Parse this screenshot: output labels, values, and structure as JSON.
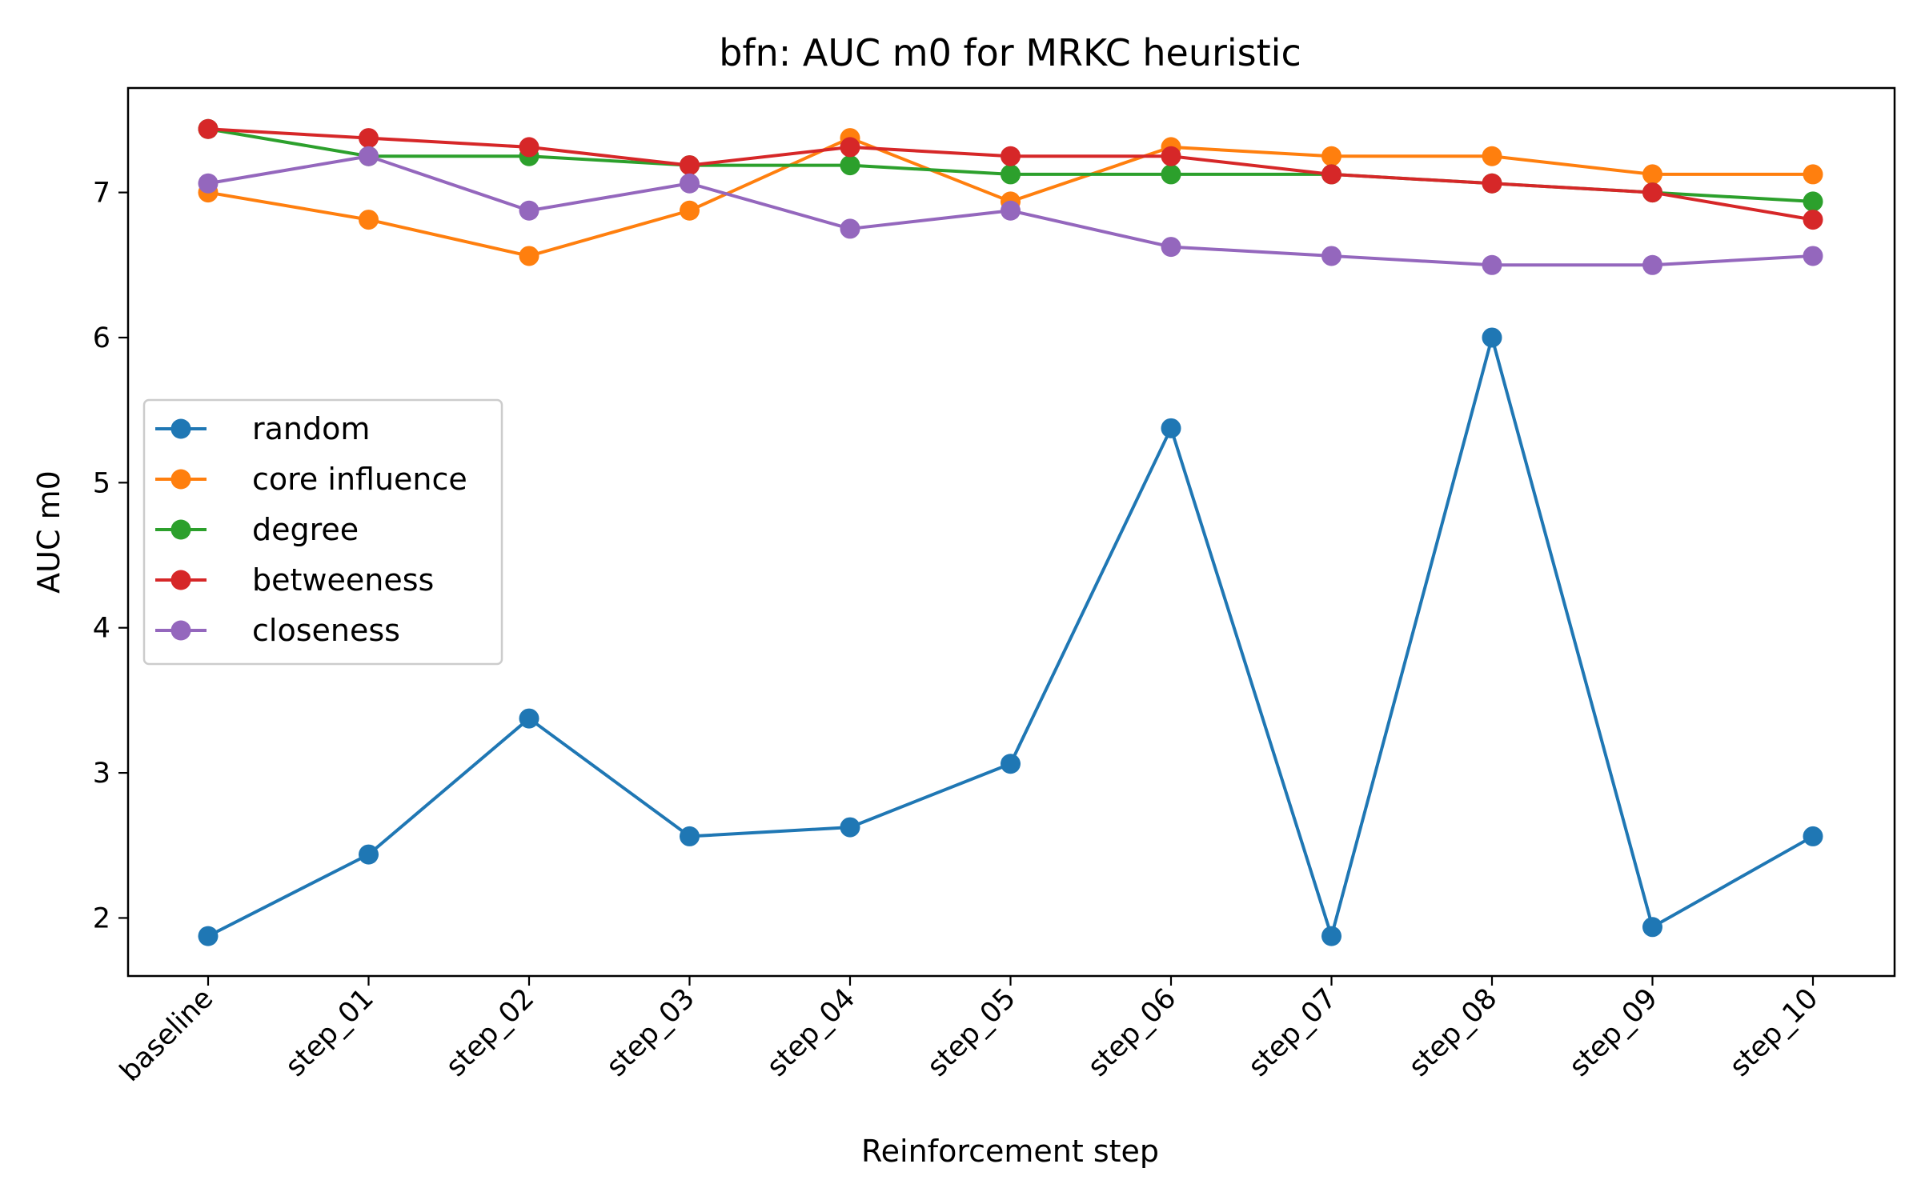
{
  "chart_data": {
    "type": "line",
    "title": "bfn: AUC m0 for MRKC heuristic",
    "xlabel": "Reinforcement step",
    "ylabel": "AUC m0",
    "categories": [
      "baseline",
      "step_01",
      "step_02",
      "step_03",
      "step_04",
      "step_05",
      "step_06",
      "step_07",
      "step_08",
      "step_09",
      "step_10"
    ],
    "ylim": [
      1.6,
      7.72
    ],
    "yticks": [
      2,
      3,
      4,
      5,
      6,
      7
    ],
    "grid": false,
    "legend_position": "center-left",
    "series": [
      {
        "name": "random",
        "color": "#1f77b4",
        "values": [
          1.875,
          2.4375,
          3.375,
          2.5625,
          2.625,
          3.0625,
          5.375,
          1.875,
          6.0,
          1.9375,
          2.5625
        ]
      },
      {
        "name": "core influence",
        "color": "#ff7f0e",
        "values": [
          7.0,
          6.8125,
          6.5625,
          6.875,
          7.375,
          6.9375,
          7.3125,
          7.25,
          7.25,
          7.125,
          7.125
        ]
      },
      {
        "name": "degree",
        "color": "#2ca02c",
        "values": [
          7.4375,
          7.25,
          7.25,
          7.1875,
          7.1875,
          7.125,
          7.125,
          7.125,
          7.0625,
          7.0,
          6.9375
        ]
      },
      {
        "name": "betweeness",
        "color": "#d62728",
        "values": [
          7.4375,
          7.375,
          7.3125,
          7.1875,
          7.3125,
          7.25,
          7.25,
          7.125,
          7.0625,
          7.0,
          6.8125
        ]
      },
      {
        "name": "closeness",
        "color": "#9467bd",
        "values": [
          7.0625,
          7.25,
          6.875,
          7.0625,
          6.75,
          6.875,
          6.625,
          6.5625,
          6.5,
          6.5,
          6.5625
        ]
      }
    ]
  }
}
